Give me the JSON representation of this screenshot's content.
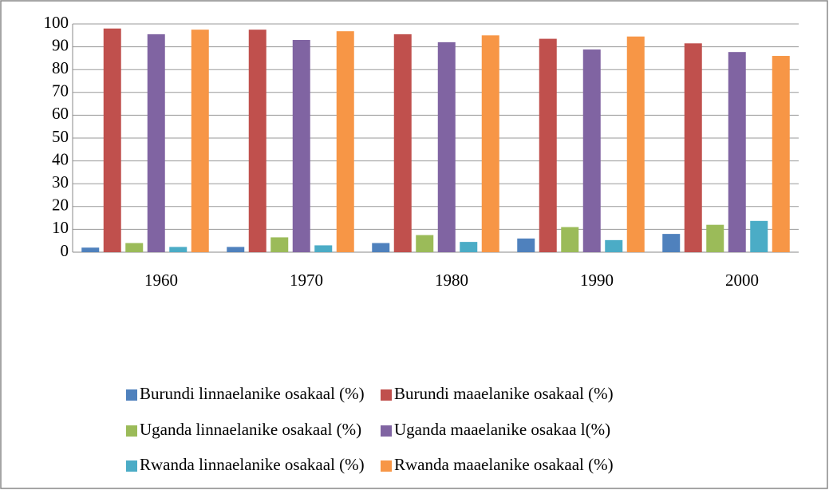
{
  "chart_data": {
    "type": "bar",
    "categories": [
      "1960",
      "1970",
      "1980",
      "1990",
      "2000"
    ],
    "series": [
      {
        "name": "Burundi linnaelanike osakaal (%)",
        "color": "#4f81bd",
        "values": [
          2,
          2.3,
          4,
          6,
          8
        ]
      },
      {
        "name": "Burundi maaelanike osakaal (%)",
        "color": "#c0504d",
        "values": [
          98,
          97.5,
          95.5,
          93.5,
          91.5
        ]
      },
      {
        "name": "Uganda linnaelanike osakaal (%)",
        "color": "#9bbb59",
        "values": [
          4,
          6.5,
          7.5,
          11,
          12
        ]
      },
      {
        "name": "Uganda maaelanike osakaa l(%)",
        "color": "#8064a2",
        "values": [
          95.5,
          93,
          92,
          88.8,
          87.7
        ]
      },
      {
        "name": "Rwanda linnaelanike osakaal (%)",
        "color": "#4bacc6",
        "values": [
          2.3,
          3,
          4.5,
          5.3,
          13.7
        ]
      },
      {
        "name": "Rwanda maaelanike osakaal (%)",
        "color": "#f79646",
        "values": [
          97.5,
          96.8,
          95,
          94.5,
          86
        ]
      }
    ],
    "ylim": [
      0,
      100
    ],
    "yticks": [
      0,
      10,
      20,
      30,
      40,
      50,
      60,
      70,
      80,
      90,
      100
    ],
    "grid": true
  }
}
